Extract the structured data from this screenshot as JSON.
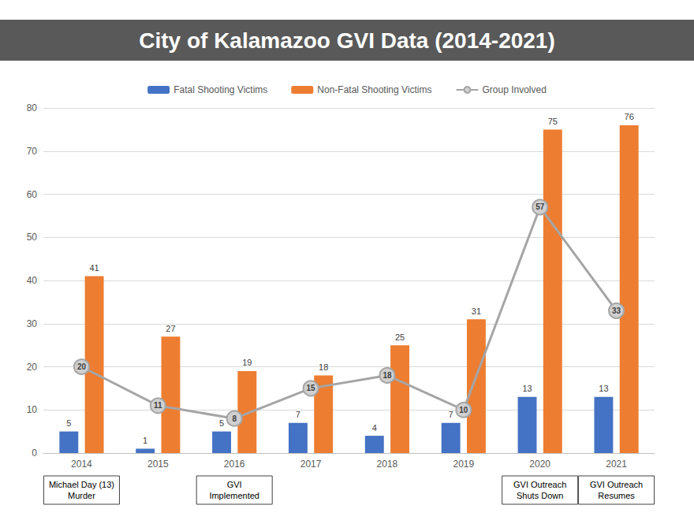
{
  "chart_data": {
    "type": "bar",
    "title": "City of Kalamazoo GVI Data (2014-2021)",
    "categories": [
      "2014",
      "2015",
      "2016",
      "2017",
      "2018",
      "2019",
      "2020",
      "2021"
    ],
    "series": [
      {
        "name": "Fatal Shooting Victims",
        "type": "bar",
        "color": "#4472c4",
        "values": [
          5,
          1,
          5,
          7,
          4,
          7,
          13,
          13
        ]
      },
      {
        "name": "Non-Fatal Shooting Victims",
        "type": "bar",
        "color": "#ed7d31",
        "values": [
          41,
          27,
          19,
          18,
          25,
          31,
          75,
          76
        ]
      },
      {
        "name": "Group Involved",
        "type": "line",
        "color": "#a5a5a5",
        "marker": "circle",
        "values": [
          20,
          11,
          8,
          15,
          18,
          10,
          57,
          33
        ]
      }
    ],
    "ylim": [
      0,
      80
    ],
    "yticks": [
      0,
      10,
      20,
      30,
      40,
      50,
      60,
      70,
      80
    ],
    "grid": true,
    "legend": "top",
    "data_labels": true,
    "annotations": [
      {
        "category": "2014",
        "text": "Michael Day (13)\nMurder"
      },
      {
        "category": "2016",
        "text": "GVI\nImplemented"
      },
      {
        "category": "2020",
        "text": "GVI Outreach\nShuts Down"
      },
      {
        "category": "2021",
        "text": "GVI Outreach\nResumes"
      }
    ]
  }
}
